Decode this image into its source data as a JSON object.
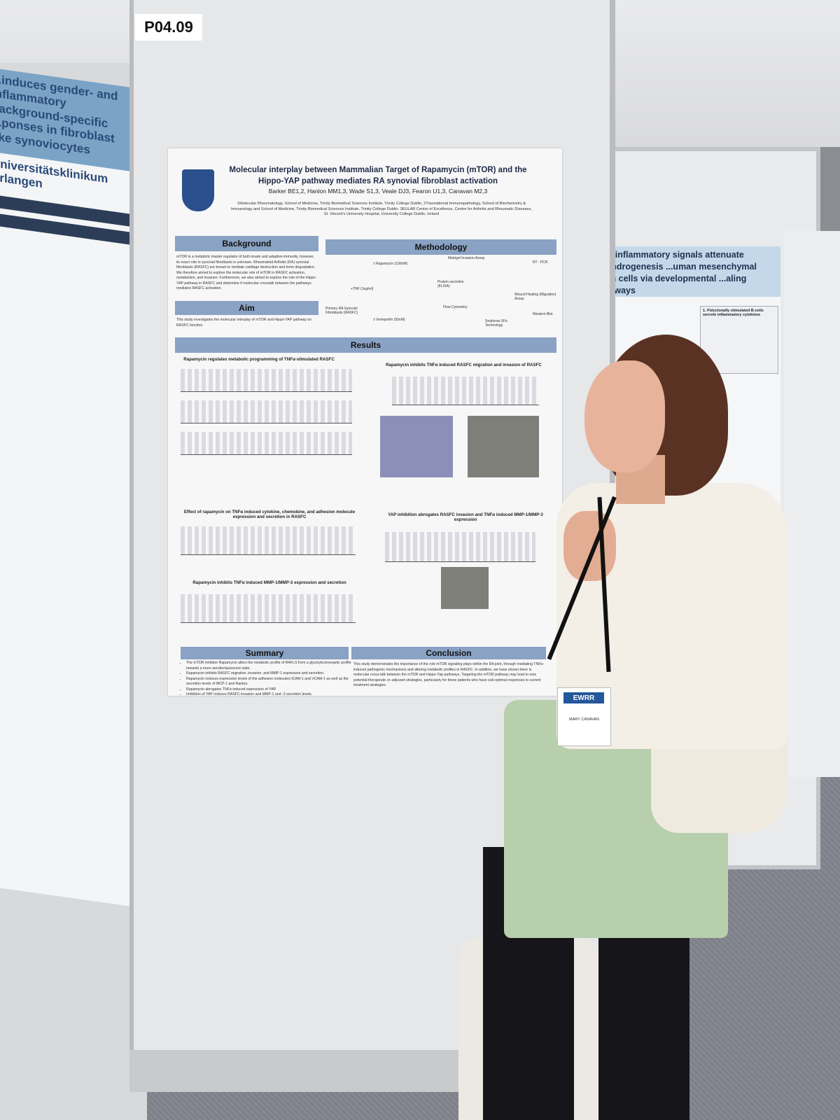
{
  "board_number": "P04.09",
  "poster": {
    "title": "Molecular interplay between Mammalian Target of Rapamycin (mTOR) and the Hippo-YAP pathway mediates RA synovial fibroblast activation",
    "authors": "Barker BE1,2, Hanlon MM1,3, Wade S1,3, Veale DJ3, Fearon U1,3, Canavan M2,3",
    "affiliations": "1Molecular Rheumatology, School of Medicine, Trinity Biomedical Sciences Institute, Trinity College Dublin, 2Translational Immunopathology, School of Biochemistry & Immunology and School of Medicine, Trinity Biomedical Sciences Institute, Trinity College Dublin. 3EULAR Centre of Excellence, Centre for Arthritis and Rheumatic Diseases, St. Vincent's University Hospital, University College Dublin, Ireland",
    "sections": {
      "background": "Background",
      "methodology": "Methodology",
      "aim": "Aim",
      "results": "Results",
      "summary": "Summary",
      "conclusion": "Conclusion"
    },
    "background_text": "mTOR is a metabolic master regulator of both innate and adaptive immunity, however, its exact role in synovial fibroblasts is unknown. Rheumatoid Arthritis (RA) synovial fibroblasts (RASFC) are known to mediate cartilage destruction and bone degradation. We therefore aimed to explore the molecular role of mTOR in RASFC activation, metabolism, and invasion. Furthermore, we also aimed to explore the role of the Hippo-YAP pathway in RASFC and determine if molecular crosstalk between the pathways mediates RASFC activation.",
    "aim_text": "This study investigates the molecular interplay of mTOR and Hippo-YAP pathway on RASFC function.",
    "methodology_labels": {
      "rapamycin": "± Rapamycin (100nM)",
      "tnf": "+TNF (1ng/ml)",
      "fibroblasts": "Primary RA Synovial Fibroblasts (RASFC)",
      "verteporfin": "± Verteporfin (50nM)",
      "matrigel": "Matrigel Invasion Assay",
      "rtpcr": "RT - PCR",
      "protein": "Protein secretion (ELISA)",
      "wound": "Wound Healing (Migration) Assay",
      "flow": "Flow Cytometry",
      "seahorse": "Seahorse XFe Technology",
      "western": "Western Blot"
    },
    "result_headings": [
      "Rapamycin regulates metabolic programming of TNFα-stimulated RASFC",
      "Rapamycin inhibits TNFα induced RASFC migration and invasion of RASFC",
      "Effect of rapamycin on TNFα induced cytokine, chemokine, and adhesion molecule expression and secretion in RASFC",
      "YAP inhibition abrogates RASFC invasion and TNFα induced MMP-1/MMP-3 expression",
      "Rapamycin inhibits TNFα induced MMP-1/MMP-3 expression and secretion"
    ],
    "summary_points": [
      "The mTOR inhibitor Rapamycin alters the metabolic profile of RAFLS from a glycolytic/energetic profile towards a more aerobic/quiescent state.",
      "Rapamycin inhibits RASFC migration, invasion, and MMP-1 expression and secretion.",
      "Rapamycin reduces expression levels of the adhesion molecules ICAM-1 and VCAM-1 as well as the secretion levels of MCP-1 and Rantes.",
      "Rapamycin abrogates TNFα induced expression of YAP.",
      "Inhibition of YAP reduces RASFC invasion and MMP-1 and -3 secretion levels."
    ],
    "conclusion_text": "This study demonstrates the importance of the role mTOR signaling plays within the RA joint, through mediating TNFα-induced pathogenic mechanisms and altering metabolic profiles in RASFC. In addition, we have shown there is molecular cross-talk between the mTOR and Hippo-Yap pathways. Targeting the mTOR pathway may lead to new potential therapeutic or adjuvant strategies, particularly for these patients who have sub-optimal responses to current treatment strategies."
  },
  "name_badge": {
    "logo": "EWRR",
    "name": "MARY CANAVAN"
  },
  "right_poster": {
    "title": "...ell inflammatory signals attenuate chondrogenesis ...uman mesenchymal stem cells via developmental ...aling pathways",
    "box_title": "1. Polyclonally stimulated B-cells secrete inflammatory cytokines"
  },
  "left_poster": {
    "title": "...induces gender- and inflammatory background-specific ...ponses in fibroblast like synoviocytes",
    "institution": "Universitätsklinikum Erlangen"
  },
  "colors": {
    "section_header": "#8aa2c3",
    "crest": "#2c4f8e",
    "badge_logo": "#24579b"
  }
}
